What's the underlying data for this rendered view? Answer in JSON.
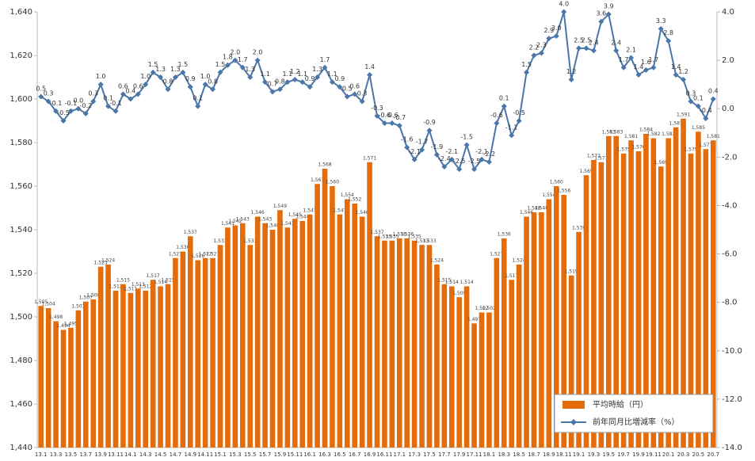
{
  "chart_data": {
    "type": "combo",
    "categories": [
      "13.1",
      null,
      "13.3",
      null,
      "13.5",
      null,
      "13.7",
      null,
      "13.9",
      null,
      "13.11",
      null,
      "14.1",
      null,
      "14.3",
      null,
      "14.5",
      null,
      "14.7",
      null,
      "14.9",
      null,
      "14.11",
      null,
      "15.1",
      null,
      "15.3",
      null,
      "15.5",
      null,
      "15.7",
      null,
      "15.9",
      null,
      "15.11",
      null,
      "16.1",
      null,
      "16.3",
      null,
      "16.5",
      null,
      "16.7",
      null,
      "16.9",
      null,
      "16.11",
      null,
      "17.1",
      null,
      "17.3",
      null,
      "17.5",
      null,
      "17.7",
      null,
      "17.9",
      null,
      "17.11",
      null,
      "18.1",
      null,
      "18.3",
      null,
      "18.5",
      null,
      "18.7",
      null,
      "18.9",
      null,
      "18.11",
      null,
      "19.1",
      null,
      "19.3",
      null,
      "19.5",
      null,
      "19.7",
      null,
      "19.9",
      null,
      "19.11",
      null,
      "20.1",
      null,
      "20.3",
      null,
      "20.5",
      null,
      "20.7"
    ],
    "series": [
      {
        "name": "平均時給（円）",
        "type": "bar",
        "color": "#e46c0a",
        "values": [
          1505,
          1504,
          1498,
          1494,
          1495,
          1503,
          1507,
          1508,
          1523,
          1524,
          1512,
          1515,
          1511,
          1513,
          1512,
          1517,
          1514,
          1515,
          1527,
          1530,
          1537,
          1526,
          1527,
          1527,
          1533,
          1541,
          1542,
          1543,
          1533,
          1546,
          1543,
          1540,
          1549,
          1541,
          1545,
          1544,
          1547,
          1561,
          1568,
          1560,
          1547,
          1554,
          1552,
          1546,
          1571,
          1537,
          1535,
          1535,
          1536,
          1536,
          1535,
          1533,
          1533,
          1524,
          1515,
          1514,
          1509,
          1514,
          1497,
          1502,
          1502,
          1527,
          1536,
          1517,
          1524,
          1546,
          1548,
          1548,
          1554,
          1560,
          1556,
          1519,
          1539,
          1565,
          1572,
          1571,
          1583,
          1583,
          1575,
          1581,
          1576,
          1584,
          1582,
          1569,
          1582,
          1587,
          1591,
          1575,
          1585,
          1577,
          1581
        ],
        "value_labels": [
          "1,505",
          "1,504",
          "1,498",
          "1,494",
          "1,495",
          "1,503",
          "1,507",
          "1,508",
          "1,523",
          "1,524",
          "1,512",
          "1,515",
          "1,511",
          "1,513",
          "1,512",
          "1,517",
          "1,514",
          "1,515",
          "1,527",
          "1,530",
          "1,537",
          "1,526",
          "1,527",
          "1,527",
          "1,533",
          "1,541",
          "1,542",
          "1,543",
          "1,533",
          "1,546",
          "1,543",
          "1,540",
          "1,549",
          "1,541",
          "1,545",
          "1,544",
          "1,547",
          "1,561",
          "1,568",
          "1,560",
          "1,547",
          "1,554",
          "1,552",
          "1,546",
          "1,571",
          "1,537",
          "1,535",
          "1,535",
          "1,536",
          "1,536",
          "1,535",
          "1,533",
          "1,533",
          "1,524",
          "1,515",
          "1,514",
          "1,509",
          "1,514",
          "1,497",
          "1,502",
          "1,502",
          "1,527",
          "1,536",
          "1,517",
          "1,524",
          "1,546",
          "1,548",
          "1,548",
          "1,554",
          "1,560",
          "1,556",
          "1,519",
          "1,539",
          "1,565",
          "1,572",
          "1,571",
          "1,583",
          "1,583",
          "1,575",
          "1,581",
          "1,576",
          "1,584",
          "1,582",
          "1,569",
          "1,582",
          "1,587",
          "1,591",
          "1,575",
          "1,585",
          "1,577",
          "1,581"
        ]
      },
      {
        "name": "前年同月比増減率（%）",
        "type": "line",
        "axis": "y2",
        "color": "#4a76a8",
        "values": [
          0.5,
          0.3,
          -0.1,
          -0.5,
          -0.1,
          0.0,
          -0.2,
          0.3,
          1.0,
          0.1,
          -0.1,
          0.6,
          0.4,
          0.6,
          1.0,
          1.5,
          1.3,
          0.8,
          1.3,
          1.5,
          0.9,
          0.1,
          1.0,
          0.8,
          1.5,
          1.8,
          2.0,
          1.7,
          1.3,
          2.0,
          1.1,
          0.7,
          0.8,
          1.1,
          1.2,
          1.1,
          0.9,
          1.3,
          1.7,
          1.1,
          0.9,
          0.5,
          0.6,
          0.3,
          1.4,
          -0.3,
          -0.6,
          -0.6,
          -0.7,
          -1.6,
          -2.1,
          -1.7,
          -0.9,
          -1.9,
          -2.4,
          -2.1,
          -2.5,
          -1.5,
          -2.5,
          -2.1,
          -2.2,
          -0.6,
          0.1,
          -1.1,
          -0.5,
          1.5,
          2.2,
          2.3,
          2.9,
          3.0,
          4.0,
          1.2,
          2.5,
          2.5,
          2.4,
          3.6,
          3.9,
          2.4,
          1.7,
          2.1,
          1.4,
          1.6,
          1.7,
          3.3,
          2.8,
          1.4,
          1.2,
          0.3,
          0.1,
          -0.4,
          0.4
        ],
        "value_labels": [
          "0.5",
          "0.3",
          "-0.1",
          "-0.5",
          "-0.1",
          "0.0",
          "-0.2",
          "0.3",
          "1.0",
          "0.1",
          "-0.1",
          "0.6",
          "0.4",
          "0.6",
          "1.0",
          "1.5",
          "1.3",
          "0.8",
          "1.3",
          "1.5",
          "0.9",
          "0.1",
          "1.0",
          "0.8",
          "1.5",
          "1.8",
          "2.0",
          "1.7",
          "1.3",
          "2.0",
          "1.1",
          "0.7",
          "0.8",
          "1.1",
          "1.2",
          "1.1",
          "0.9",
          "1.3",
          "1.7",
          "1.1",
          "0.9",
          "0.5",
          "0.6",
          "0.3",
          "1.4",
          "-0.3",
          "-0.6",
          "-0.6",
          "-0.7",
          "-1.6",
          "-2.1",
          "-1.7",
          "-0.9",
          "-1.9",
          "-2.4",
          "-2.1",
          "-2.5",
          "-1.5",
          "-2.5",
          "-2.1",
          "-2.2",
          "-0.6",
          "0.1",
          "-1.1",
          "-0.5",
          "1.5",
          "2.2",
          "2.3",
          "2.9",
          "3.0",
          "4.0",
          "1.2",
          "2.5",
          "2.5",
          "2.4",
          "3.6",
          "3.9",
          "2.4",
          "1.7",
          "2.1",
          "1.4",
          "1.6",
          "1.7",
          "3.3",
          "2.8",
          "1.4",
          "1.2",
          "0.3",
          "0.1",
          "-0.4",
          "0.4"
        ]
      }
    ],
    "ylim": [
      1440,
      1640
    ],
    "yticks": [
      {
        "value": 1440,
        "label": "1,440"
      },
      {
        "value": 1460,
        "label": "1,460"
      },
      {
        "value": 1480,
        "label": "1,480"
      },
      {
        "value": 1500,
        "label": "1,500"
      },
      {
        "value": 1520,
        "label": "1,520"
      },
      {
        "value": 1540,
        "label": "1,540"
      },
      {
        "value": 1560,
        "label": "1,560"
      },
      {
        "value": 1580,
        "label": "1,580"
      },
      {
        "value": 1600,
        "label": "1,600"
      },
      {
        "value": 1620,
        "label": "1,620"
      },
      {
        "value": 1640,
        "label": "1,640"
      }
    ],
    "y2lim": [
      -14,
      4
    ],
    "y2ticks": [
      {
        "value": -14,
        "label": "-14.0"
      },
      {
        "value": -12,
        "label": "-12.0"
      },
      {
        "value": -10,
        "label": "-10.0"
      },
      {
        "value": -8,
        "label": "-8.0"
      },
      {
        "value": -6,
        "label": "-6.0"
      },
      {
        "value": -4,
        "label": "-4.0"
      },
      {
        "value": -2,
        "label": "-2.0"
      },
      {
        "value": 0,
        "label": "0.0"
      },
      {
        "value": 2,
        "label": "2.0"
      },
      {
        "value": 4,
        "label": "4.0"
      }
    ],
    "grid": false,
    "legend": "lower-right"
  }
}
